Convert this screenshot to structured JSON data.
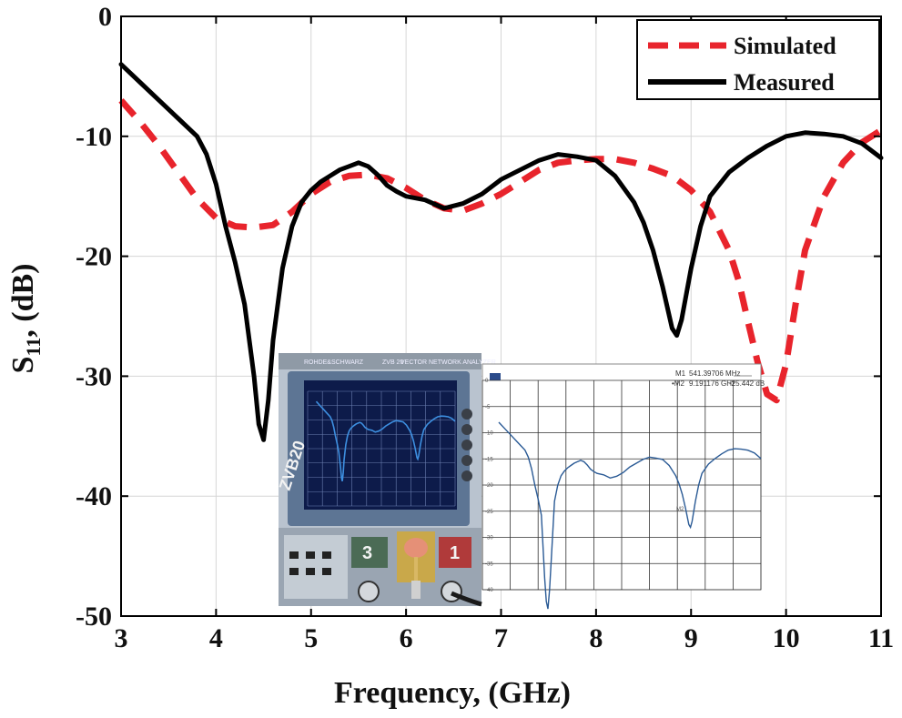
{
  "chart_data": {
    "type": "line",
    "xlabel": "Frequency, (GHz)",
    "ylabel_main": "S",
    "ylabel_sub": "11",
    "ylabel_rest": ", (dB)",
    "xlim": [
      3,
      11
    ],
    "ylim": [
      -50,
      0
    ],
    "xticks": [
      3,
      4,
      5,
      6,
      7,
      8,
      9,
      10,
      11
    ],
    "yticks": [
      0,
      -10,
      -20,
      -30,
      -40,
      -50
    ],
    "grid": true,
    "legend_position": "top-right",
    "series": [
      {
        "name": "Simulated",
        "color": "#e8242c",
        "style": "dashed",
        "x": [
          3.0,
          3.2,
          3.4,
          3.6,
          3.8,
          4.0,
          4.2,
          4.4,
          4.6,
          4.8,
          5.0,
          5.2,
          5.4,
          5.6,
          5.8,
          6.0,
          6.2,
          6.4,
          6.6,
          6.8,
          7.0,
          7.2,
          7.4,
          7.6,
          7.8,
          8.0,
          8.2,
          8.4,
          8.6,
          8.8,
          9.0,
          9.2,
          9.4,
          9.5,
          9.6,
          9.7,
          9.8,
          9.9,
          10.0,
          10.1,
          10.2,
          10.4,
          10.6,
          10.8,
          11.0
        ],
        "y": [
          -7.0,
          -8.8,
          -10.8,
          -13.0,
          -15.2,
          -16.8,
          -17.5,
          -17.6,
          -17.4,
          -16.3,
          -14.8,
          -13.8,
          -13.3,
          -13.2,
          -13.5,
          -14.3,
          -15.3,
          -16.0,
          -16.2,
          -15.6,
          -14.8,
          -13.8,
          -12.8,
          -12.2,
          -12.0,
          -11.9,
          -11.9,
          -12.2,
          -12.7,
          -13.3,
          -14.5,
          -16.3,
          -19.5,
          -22.0,
          -25.5,
          -28.8,
          -31.5,
          -32.0,
          -29.0,
          -24.0,
          -19.5,
          -15.0,
          -12.2,
          -10.5,
          -9.5
        ]
      },
      {
        "name": "Measured",
        "color": "#000000",
        "style": "solid",
        "x": [
          3.0,
          3.2,
          3.4,
          3.6,
          3.8,
          3.9,
          4.0,
          4.1,
          4.2,
          4.3,
          4.4,
          4.45,
          4.5,
          4.55,
          4.6,
          4.7,
          4.8,
          4.9,
          5.0,
          5.1,
          5.2,
          5.3,
          5.4,
          5.5,
          5.6,
          5.7,
          5.8,
          5.9,
          6.0,
          6.2,
          6.4,
          6.6,
          6.8,
          7.0,
          7.2,
          7.4,
          7.6,
          7.8,
          8.0,
          8.2,
          8.4,
          8.5,
          8.6,
          8.7,
          8.8,
          8.85,
          8.9,
          9.0,
          9.1,
          9.2,
          9.4,
          9.6,
          9.8,
          10.0,
          10.2,
          10.4,
          10.6,
          10.8,
          11.0
        ],
        "y": [
          -4.0,
          -5.5,
          -7.0,
          -8.5,
          -10.0,
          -11.5,
          -14.0,
          -17.5,
          -20.5,
          -24.0,
          -30.0,
          -34.0,
          -35.3,
          -32.0,
          -27.0,
          -21.0,
          -17.5,
          -15.5,
          -14.5,
          -13.8,
          -13.3,
          -12.8,
          -12.5,
          -12.2,
          -12.5,
          -13.2,
          -14.1,
          -14.6,
          -15.0,
          -15.3,
          -16.0,
          -15.6,
          -14.8,
          -13.6,
          -12.8,
          -12.0,
          -11.5,
          -11.7,
          -12.0,
          -13.3,
          -15.5,
          -17.2,
          -19.5,
          -22.5,
          -26.0,
          -26.6,
          -25.3,
          -21.0,
          -17.5,
          -15.0,
          -13.0,
          -11.8,
          -10.8,
          -10.0,
          -9.7,
          -9.8,
          -10.0,
          -10.6,
          -11.8
        ]
      }
    ]
  },
  "inset_photo": {
    "brand": "ROHDE&SCHWARZ",
    "model": "ZVB 20",
    "instrument_title": "VECTOR NETWORK ANALYZER",
    "model_big": "ZVB20",
    "port_3": "3",
    "port_1": "1"
  },
  "inset_plot": {
    "marker1_name": "M1",
    "marker1_freq": "541.39706 MHz",
    "marker2_name": "•M2",
    "marker2_freq": "9.191176 GHz",
    "marker2_val": "-25.442 dB",
    "marker_label": "M2",
    "yticks": [
      "0",
      "-5",
      "-10",
      "-15",
      "-20",
      "-25",
      "-30",
      "-35",
      "-40"
    ],
    "trace_color": "#2a5a95"
  }
}
